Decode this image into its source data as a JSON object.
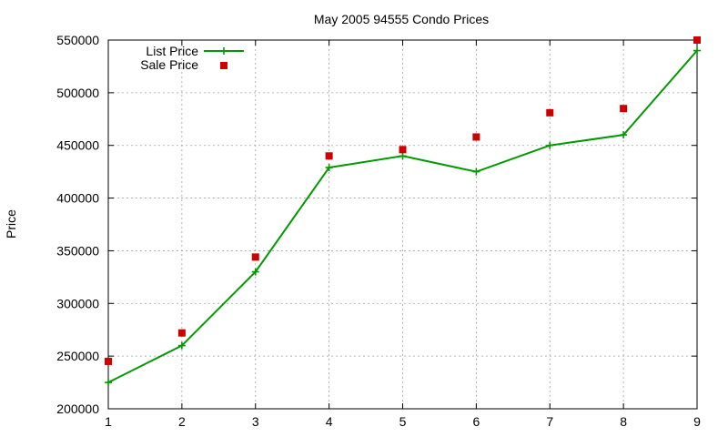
{
  "chart_data": {
    "type": "line",
    "title": "May 2005 94555 Condo Prices",
    "xlabel": "",
    "ylabel": "Price",
    "x": [
      1,
      2,
      3,
      4,
      5,
      6,
      7,
      8,
      9
    ],
    "xlim": [
      1,
      9
    ],
    "ylim": [
      200000,
      550000
    ],
    "xticks": [
      "1",
      "2",
      "3",
      "4",
      "5",
      "6",
      "7",
      "8",
      "9"
    ],
    "yticks": [
      "200000",
      "250000",
      "300000",
      "350000",
      "400000",
      "450000",
      "500000",
      "550000"
    ],
    "grid": true,
    "legend": "top-left",
    "series": [
      {
        "name": "List Price",
        "style": "line-with-plus-markers",
        "color": "#009900",
        "values": [
          225000,
          260000,
          330000,
          429000,
          440000,
          425000,
          450000,
          460000,
          540000
        ]
      },
      {
        "name": "Sale Price",
        "style": "square-markers",
        "color": "#cc0000",
        "values": [
          245000,
          272000,
          344000,
          440000,
          446000,
          458000,
          481000,
          485000,
          550000
        ]
      }
    ]
  }
}
